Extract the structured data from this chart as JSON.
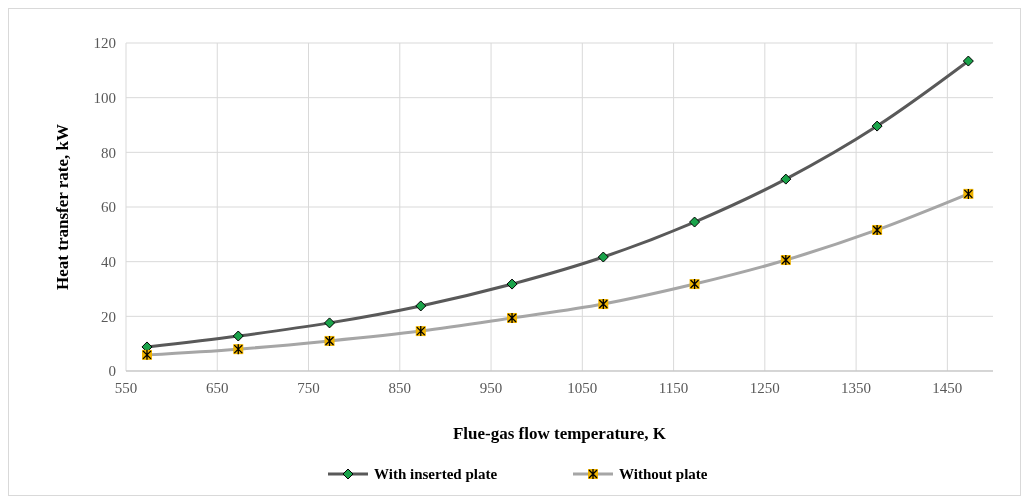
{
  "chart_data": {
    "type": "line",
    "xlabel": "Flue-gas flow temperature, K",
    "ylabel": "Heat transfer rate, kW",
    "x": [
      573,
      673,
      773,
      873,
      973,
      1073,
      1173,
      1273,
      1373,
      1473
    ],
    "series": [
      {
        "name": "With inserted plate",
        "color": "#595959",
        "marker": "diamond",
        "values": [
          8.8,
          12.8,
          17.6,
          23.8,
          31.8,
          41.7,
          54.5,
          70.2,
          89.6,
          113.4
        ]
      },
      {
        "name": "Without plate",
        "color": "#a6a6a6",
        "marker": "square",
        "values": [
          5.9,
          8.0,
          11.0,
          14.6,
          19.4,
          24.5,
          31.8,
          40.6,
          51.6,
          64.8
        ]
      }
    ],
    "xlim": [
      550,
      1500
    ],
    "xticks": [
      550,
      650,
      750,
      850,
      950,
      1050,
      1150,
      1250,
      1350,
      1450
    ],
    "ylim": [
      0,
      120
    ],
    "yticks": [
      0,
      20,
      40,
      60,
      80,
      100,
      120
    ],
    "grid": true,
    "legend": "bottom"
  }
}
